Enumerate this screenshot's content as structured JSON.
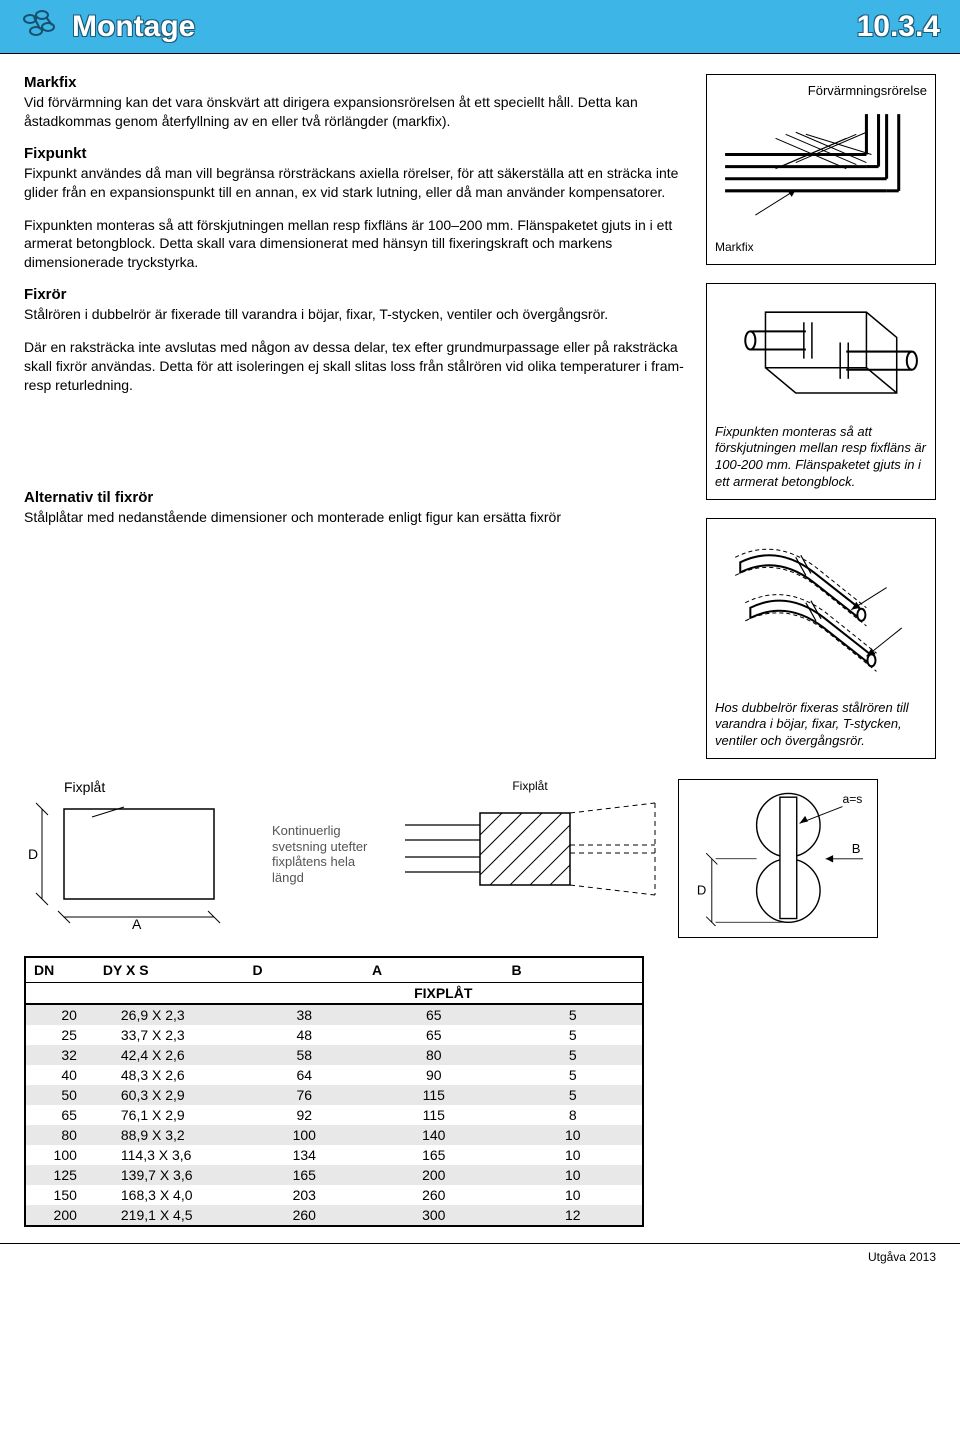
{
  "header": {
    "title": "Montage",
    "code": "10.3.4"
  },
  "main": {
    "markfix": {
      "heading": "Markfix",
      "text": "Vid förvärmning kan det vara önskvärt att dirigera expansionsrörelsen åt ett speciellt håll. Detta kan åstadkommas genom återfyllning av en eller två rörlängder (markfix)."
    },
    "fixpunkt": {
      "heading": "Fixpunkt",
      "text": "Fixpunkt användes då man vill begränsa rörsträckans axiella rörelser, för att säkerställa att en sträcka inte glider från en expansionspunkt till en annan, ex vid stark lutning, eller då man använder kompensatorer."
    },
    "fixpunkt_mont": {
      "text": "Fixpunkten monteras så att förskjutningen mellan resp fixfläns är 100–200 mm. Flänspaketet gjuts in i ett armerat betongblock. Detta skall vara dimensionerat med hänsyn till fixeringskraft och markens dimensionerade tryckstyrka."
    },
    "fixror": {
      "heading": "Fixrör",
      "text1": "Stålrören i dubbelrör är fixerade till varandra i böjar, fixar, T-stycken, ventiler och övergångsrör.",
      "text2": "Där en raksträcka inte avslutas med någon av dessa delar, tex efter grundmurpassage eller på raksträcka skall fixrör användas. Detta för att isoleringen ej skall slitas loss från stålrören vid olika temperaturer i fram- resp returledning."
    },
    "alt_fixror": {
      "heading": "Alternativ til fixrör",
      "text": "Stålplåtar med nedanstående dimensioner och monterade enligt figur kan ersätta fixrör"
    }
  },
  "side": {
    "fig1": {
      "title": "Förvärmningsrörelse",
      "label": "Markfix"
    },
    "fig2": {
      "caption": "Fixpunkten monteras så att förskjutningen mellan resp fixfläns är 100-200 mm. Flänspaketet gjuts in i ett armerat betongblock."
    },
    "fig3": {
      "caption": "Hos dubbelrör fixeras stålrören till varandra i böjar, fixar, T-stycken, ventiler och övergångsrör."
    }
  },
  "diagrams": {
    "fixplat_label": "Fixplåt",
    "welding_text": "Kontinuerlig svetsning utefter fixplåtens hela längd",
    "dim_D": "D",
    "dim_A": "A",
    "dim_B": "B",
    "dim_as": "a=s",
    "fixplat_small": "Fixplåt"
  },
  "table": {
    "headers": [
      "DN",
      "DY X S",
      "D",
      "A",
      "B"
    ],
    "subheader": "FIXPLÅT",
    "rows": [
      [
        "20",
        "26,9 X 2,3",
        "38",
        "65",
        "5"
      ],
      [
        "25",
        "33,7 X 2,3",
        "48",
        "65",
        "5"
      ],
      [
        "32",
        "42,4 X 2,6",
        "58",
        "80",
        "5"
      ],
      [
        "40",
        "48,3 X 2,6",
        "64",
        "90",
        "5"
      ],
      [
        "50",
        "60,3 X 2,9",
        "76",
        "115",
        "5"
      ],
      [
        "65",
        "76,1 X 2,9",
        "92",
        "115",
        "8"
      ],
      [
        "80",
        "88,9 X 3,2",
        "100",
        "140",
        "10"
      ],
      [
        "100",
        "114,3 X 3,6",
        "134",
        "165",
        "10"
      ],
      [
        "125",
        "139,7 X 3,6",
        "165",
        "200",
        "10"
      ],
      [
        "150",
        "168,3 X 4,0",
        "203",
        "260",
        "10"
      ],
      [
        "200",
        "219,1 X 4,5",
        "260",
        "300",
        "12"
      ]
    ]
  },
  "footer": {
    "text": "Utgåva 2013"
  }
}
